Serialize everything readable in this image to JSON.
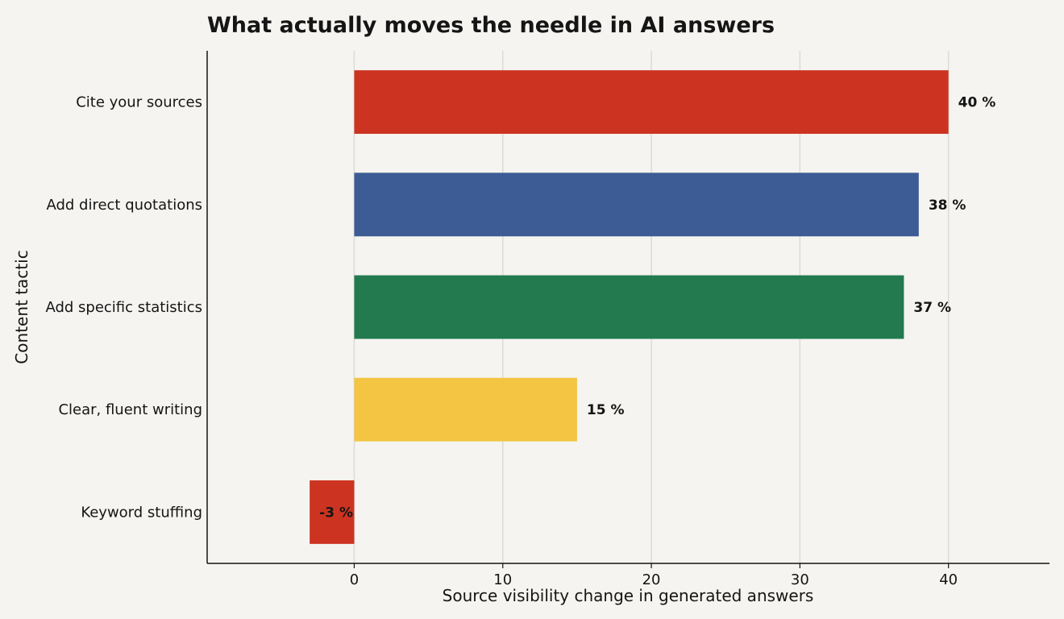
{
  "chart_data": {
    "type": "bar",
    "orientation": "horizontal",
    "title": "What actually moves the needle in AI answers",
    "xlabel": "Source visibility change in generated answers",
    "ylabel": "Content tactic",
    "categories": [
      "Cite your sources",
      "Add direct quotations",
      "Add specific statistics",
      "Clear, fluent writing",
      "Keyword stuffing"
    ],
    "values": [
      40,
      38,
      37,
      15,
      -3
    ],
    "data_labels": [
      "40 %",
      "38 %",
      "37 %",
      "15 %",
      "-3 %"
    ],
    "colors": [
      "#cc3421",
      "#3d5b95",
      "#227a4e",
      "#f3c542",
      "#cc3421"
    ],
    "xticks": [
      0,
      10,
      20,
      30,
      40
    ],
    "xtick_labels": [
      "0",
      "10",
      "20",
      "30",
      "40"
    ],
    "xlim": [
      -9.9,
      46.8
    ],
    "grid": "vertical",
    "legend": "none"
  }
}
